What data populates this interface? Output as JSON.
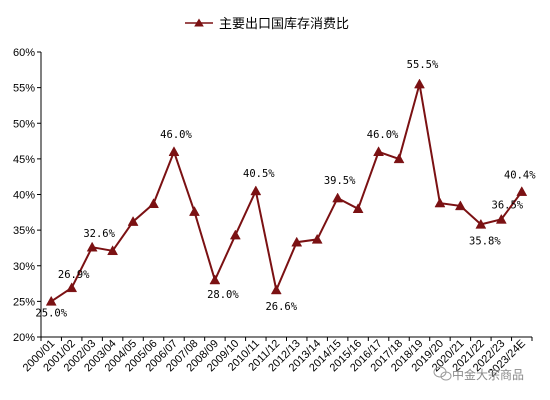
{
  "chart_data": {
    "type": "line",
    "title": "",
    "xlabel": "",
    "ylabel": "",
    "ylim": [
      20,
      60
    ],
    "ytick_step": 5,
    "y_format": "percent",
    "grid": false,
    "legend_position": "top",
    "x": [
      "2000/01",
      "2001/02",
      "2002/03",
      "2003/04",
      "2004/05",
      "2005/06",
      "2006/07",
      "2007/08",
      "2008/09",
      "2009/10",
      "2010/11",
      "2011/12",
      "2012/13",
      "2013/14",
      "2014/15",
      "2015/16",
      "2016/17",
      "2017/18",
      "2018/19",
      "2019/20",
      "2020/21",
      "2021/22",
      "2022/23",
      "2023/24E"
    ],
    "series": [
      {
        "name": "主要出口国库存消费比",
        "color": "#7b1113",
        "marker": "triangle",
        "values": [
          25.0,
          26.9,
          32.6,
          32.1,
          36.2,
          38.7,
          46.0,
          37.6,
          28.0,
          34.3,
          40.5,
          26.6,
          33.3,
          33.7,
          39.5,
          38.0,
          46.0,
          45.0,
          55.5,
          38.8,
          38.4,
          35.8,
          36.5,
          40.4
        ]
      }
    ],
    "data_labels": [
      {
        "index": 0,
        "text": "25.0%"
      },
      {
        "index": 1,
        "text": "26.9%"
      },
      {
        "index": 2,
        "text": "32.6%"
      },
      {
        "index": 6,
        "text": "46.0%"
      },
      {
        "index": 8,
        "text": "28.0%"
      },
      {
        "index": 10,
        "text": "40.5%"
      },
      {
        "index": 11,
        "text": "26.6%"
      },
      {
        "index": 14,
        "text": "39.5%"
      },
      {
        "index": 16,
        "text": "46.0%"
      },
      {
        "index": 18,
        "text": "55.5%"
      },
      {
        "index": 21,
        "text": "35.8%"
      },
      {
        "index": 22,
        "text": "36.5%"
      },
      {
        "index": 23,
        "text": "40.4%"
      }
    ]
  },
  "watermark": {
    "text": "中金大宗商品",
    "icon": "wechat-icon"
  },
  "colors": {
    "series": "#7b1113",
    "axis": "#000000"
  }
}
